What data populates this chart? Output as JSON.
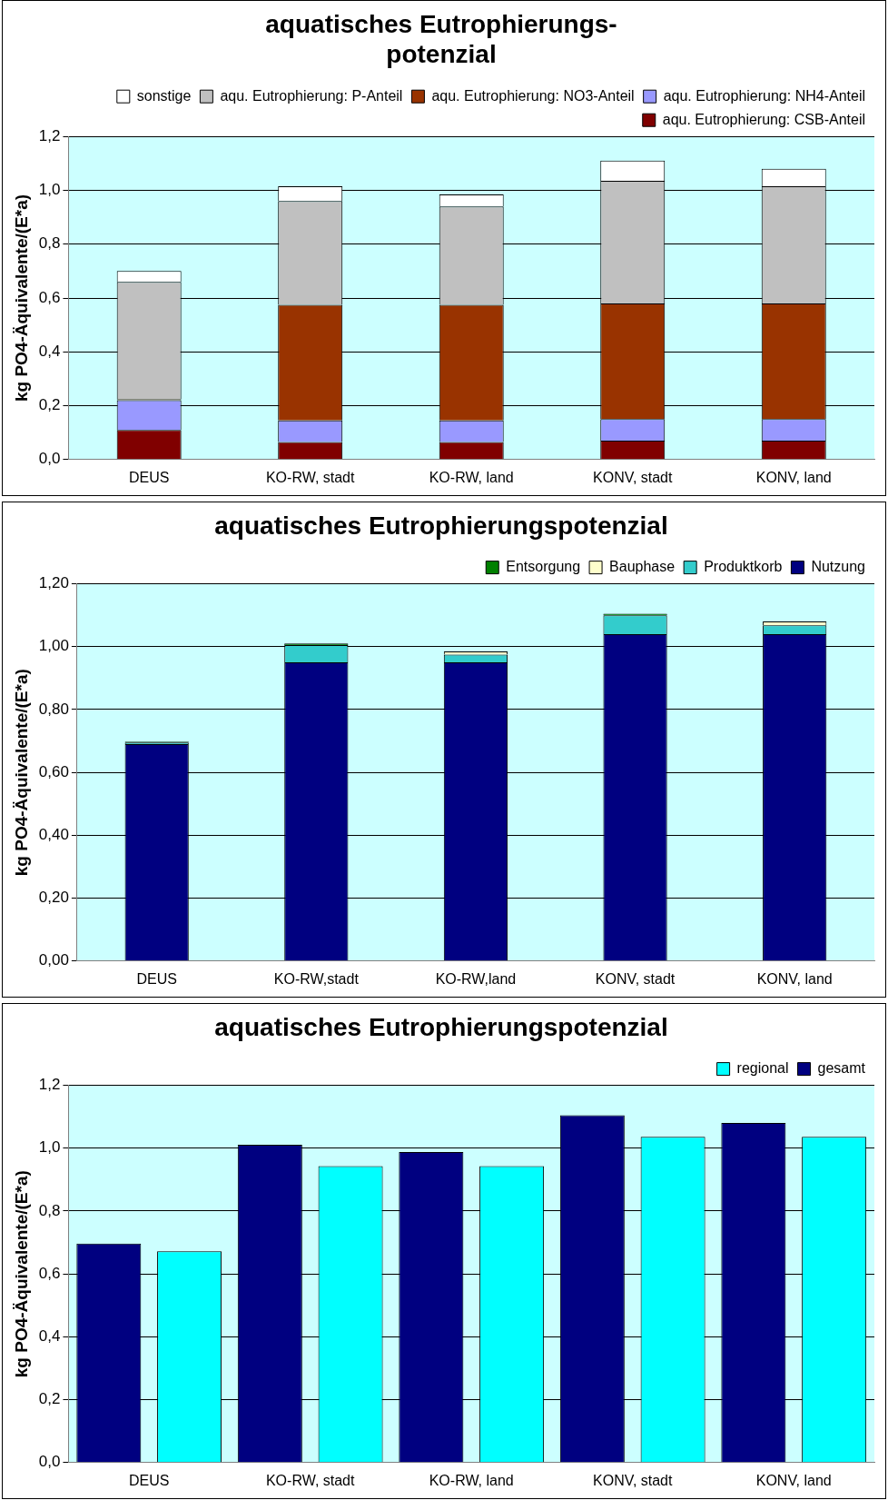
{
  "chart_data": [
    {
      "type": "bar",
      "stacked": true,
      "title": "aquatisches Eutrophierungs-\npotenzial",
      "ylabel": "kg PO4-Äquivalente/(E*a)",
      "categories": [
        "DEUS",
        "KO-RW, stadt",
        "KO-RW, land",
        "KONV, stadt",
        "KONV, land"
      ],
      "ylim": [
        0,
        1.2
      ],
      "yticks": [
        {
          "value": 0,
          "label": "0,0"
        },
        {
          "value": 0.2,
          "label": "0,2"
        },
        {
          "value": 0.4,
          "label": "0,4"
        },
        {
          "value": 0.6,
          "label": "0,6"
        },
        {
          "value": 0.8,
          "label": "0,8"
        },
        {
          "value": 1.0,
          "label": "1,0"
        },
        {
          "value": 1.2,
          "label": "1,2"
        }
      ],
      "grid": "y",
      "legend": "top right",
      "series": [
        {
          "name": "aqu. Eutrophierung: CSB-Anteil",
          "color": "#800000",
          "values": [
            0.11,
            0.065,
            0.065,
            0.07,
            0.07
          ]
        },
        {
          "name": "aqu. Eutrophierung: NH4-Anteil",
          "color": "#9999ff",
          "values": [
            0.11,
            0.08,
            0.08,
            0.08,
            0.08
          ]
        },
        {
          "name": "aqu. Eutrophierung: NO3-Anteil",
          "color": "#993300",
          "values": [
            0.005,
            0.43,
            0.43,
            0.43,
            0.43
          ]
        },
        {
          "name": "aqu. Eutrophierung: P-Anteil",
          "color": "#c0c0c0",
          "values": [
            0.435,
            0.385,
            0.365,
            0.455,
            0.435
          ]
        },
        {
          "name": "sonstige",
          "color": "#ffffff",
          "values": [
            0.04,
            0.055,
            0.045,
            0.075,
            0.065
          ]
        }
      ]
    },
    {
      "type": "bar",
      "stacked": true,
      "title": "aquatisches Eutrophierungspotenzial",
      "ylabel": "kg PO4-Äquivalente/(E*a)",
      "categories": [
        "DEUS",
        "KO-RW,stadt",
        "KO-RW,land",
        "KONV, stadt",
        "KONV, land"
      ],
      "ylim": [
        0,
        1.2
      ],
      "yticks": [
        {
          "value": 0,
          "label": "0,00"
        },
        {
          "value": 0.2,
          "label": "0,20"
        },
        {
          "value": 0.4,
          "label": "0,40"
        },
        {
          "value": 0.6,
          "label": "0,60"
        },
        {
          "value": 0.8,
          "label": "0,80"
        },
        {
          "value": 1.0,
          "label": "1,00"
        },
        {
          "value": 1.2,
          "label": "1,20"
        }
      ],
      "grid": "y",
      "legend": "top right",
      "series": [
        {
          "name": "Nutzung",
          "color": "#000080",
          "values": [
            0.69,
            0.95,
            0.95,
            1.04,
            1.04
          ]
        },
        {
          "name": "Produktkorb",
          "color": "#33cccc",
          "values": [
            0.005,
            0.055,
            0.025,
            0.06,
            0.028
          ]
        },
        {
          "name": "Bauphase",
          "color": "#ffffcc",
          "values": [
            0,
            0,
            0.01,
            0,
            0.012
          ]
        },
        {
          "name": "Entsorgung",
          "color": "#008000",
          "values": [
            0.003,
            0.005,
            0,
            0.005,
            0
          ]
        }
      ]
    },
    {
      "type": "bar",
      "title": "aquatisches Eutrophierungspotenzial",
      "ylabel": "kg PO4-Äquivalente/(E*a)",
      "categories": [
        "DEUS",
        "KO-RW, stadt",
        "KO-RW, land",
        "KONV, stadt",
        "KONV, land"
      ],
      "ylim": [
        0,
        1.2
      ],
      "yticks": [
        {
          "value": 0,
          "label": "0,0"
        },
        {
          "value": 0.2,
          "label": "0,2"
        },
        {
          "value": 0.4,
          "label": "0,4"
        },
        {
          "value": 0.6,
          "label": "0,6"
        },
        {
          "value": 0.8,
          "label": "0,8"
        },
        {
          "value": 1.0,
          "label": "1,0"
        },
        {
          "value": 1.2,
          "label": "1,2"
        }
      ],
      "grid": "y",
      "legend": "top right",
      "series": [
        {
          "name": "gesamt",
          "color": "#000080",
          "values": [
            0.697,
            1.011,
            0.988,
            1.105,
            1.08
          ]
        },
        {
          "name": "regional",
          "color": "#00ffff",
          "values": [
            0.672,
            0.943,
            0.943,
            1.036,
            1.036
          ]
        }
      ]
    }
  ]
}
